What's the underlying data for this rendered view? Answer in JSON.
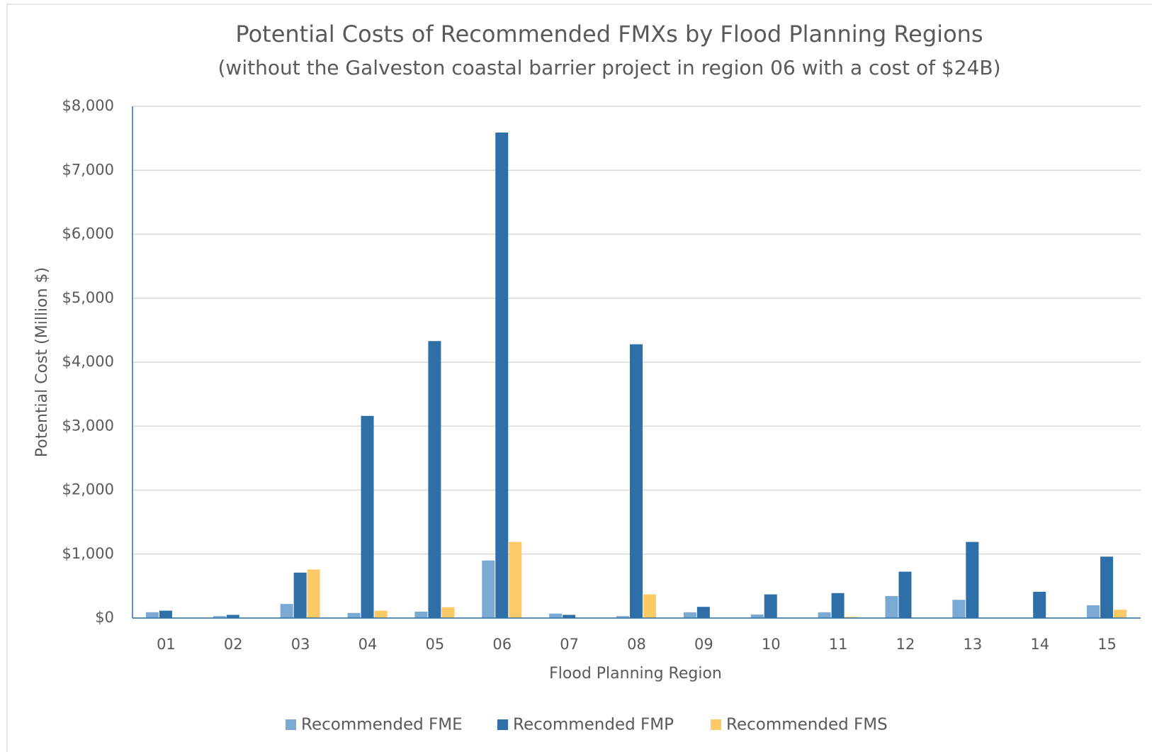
{
  "chart_data": {
    "type": "bar",
    "title": "Potential Costs of Recommended FMXs by Flood Planning Regions",
    "subtitle": "(without the Galveston coastal barrier project in region 06 with a cost of $24B)",
    "x_label": "Flood Planning Region",
    "y_label": "Potential Cost (Million $)",
    "categories": [
      "01",
      "02",
      "03",
      "04",
      "05",
      "06",
      "07",
      "08",
      "09",
      "10",
      "11",
      "12",
      "13",
      "14",
      "15"
    ],
    "series": [
      {
        "name": "Recommended FME",
        "color": "#7aaad4",
        "values": [
          90,
          30,
          220,
          80,
          100,
          900,
          70,
          30,
          90,
          55,
          90,
          345,
          285,
          0,
          200
        ]
      },
      {
        "name": "Recommended FMP",
        "color": "#2e6fa7",
        "values": [
          115,
          50,
          710,
          3160,
          4330,
          7590,
          50,
          4280,
          175,
          370,
          390,
          725,
          1190,
          410,
          960
        ]
      },
      {
        "name": "Recommended FMS",
        "color": "#ffc966",
        "values": [
          0,
          0,
          760,
          115,
          170,
          1190,
          0,
          370,
          0,
          0,
          20,
          0,
          0,
          0,
          130
        ]
      }
    ],
    "ylim": [
      0,
      8000
    ],
    "yticks": [
      {
        "value": 0,
        "label": "$0"
      },
      {
        "value": 1000,
        "label": "$1,000"
      },
      {
        "value": 2000,
        "label": "$2,000"
      },
      {
        "value": 3000,
        "label": "$3,000"
      },
      {
        "value": 4000,
        "label": "$4,000"
      },
      {
        "value": 5000,
        "label": "$5,000"
      },
      {
        "value": 6000,
        "label": "$6,000"
      },
      {
        "value": 7000,
        "label": "$7,000"
      },
      {
        "value": 8000,
        "label": "$8,000"
      }
    ],
    "grid": true,
    "legend": "bottom"
  }
}
